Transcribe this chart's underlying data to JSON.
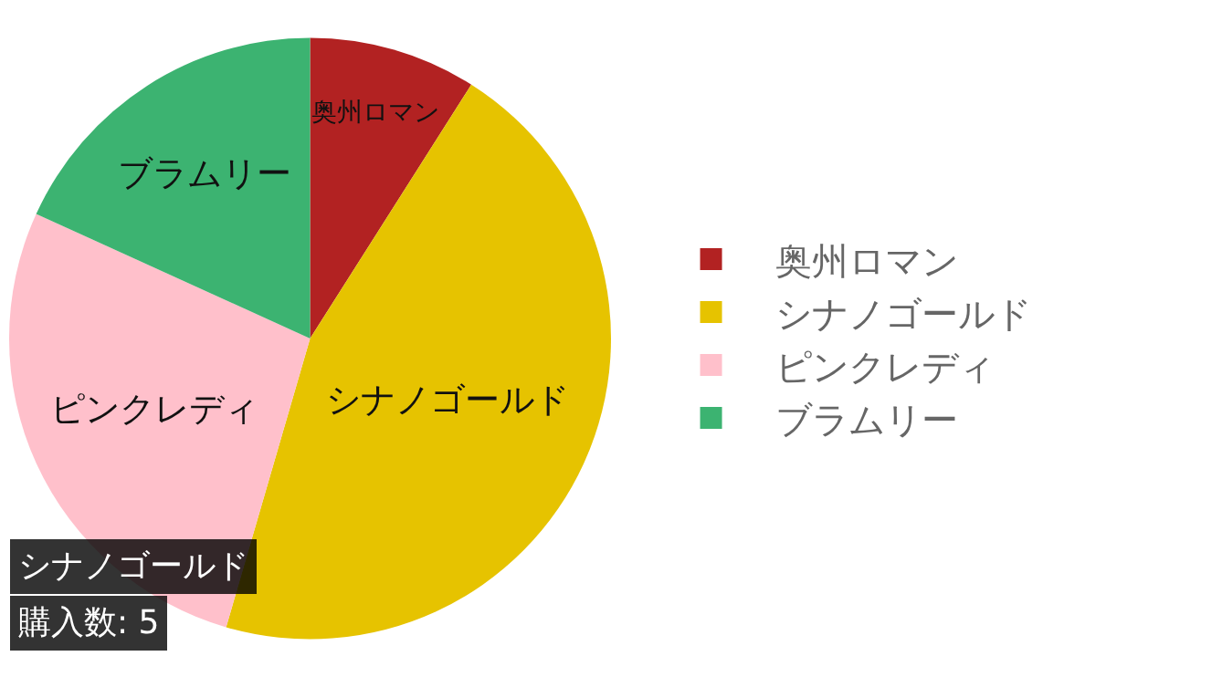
{
  "chart_data": {
    "type": "pie",
    "categories": [
      "奥州ロマン",
      "シナノゴールド",
      "ピンクレディ",
      "ブラムリー"
    ],
    "values": [
      9,
      45.5,
      27.3,
      18.2
    ],
    "colors": [
      "#b22222",
      "#e6c300",
      "#ffc0cb",
      "#3cb371"
    ],
    "legend": "right",
    "annotations": [
      "シナノゴールド",
      "購入数: 5"
    ]
  }
}
